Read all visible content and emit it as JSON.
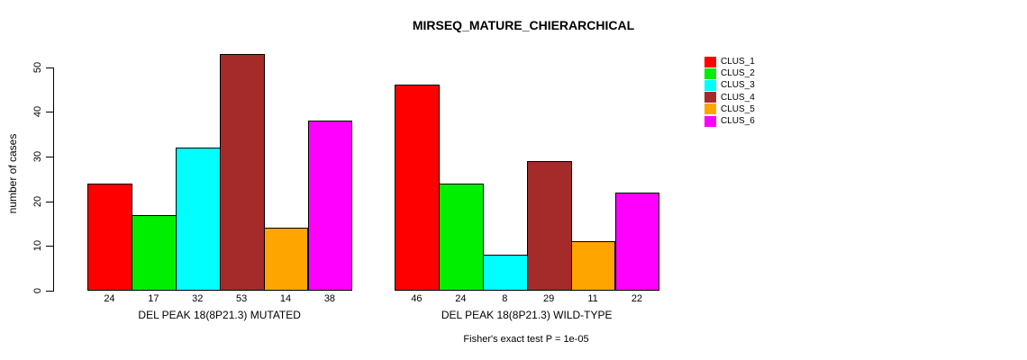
{
  "chart_data": {
    "type": "bar",
    "title": "MIRSEQ_MATURE_CHIERARCHICAL",
    "ylabel": "number of cases",
    "xlabel": "",
    "ylim": [
      0,
      50
    ],
    "yticks": [
      0,
      10,
      20,
      30,
      40,
      50
    ],
    "grid": false,
    "legend_position": "right",
    "background": "#FFFFFF",
    "axis_color": "#000000",
    "bar_border_color": "#000000",
    "categories": [
      "DEL PEAK 18(8P21.3) MUTATED",
      "DEL PEAK 18(8P21.3) WILD-TYPE"
    ],
    "series": [
      {
        "name": "CLUS_1",
        "color": "#FF0000",
        "values": [
          24,
          46
        ]
      },
      {
        "name": "CLUS_2",
        "color": "#00EE00",
        "values": [
          17,
          24
        ]
      },
      {
        "name": "CLUS_3",
        "color": "#00FFFF",
        "values": [
          32,
          8
        ]
      },
      {
        "name": "CLUS_4",
        "color": "#A52A2A",
        "values": [
          53,
          29
        ]
      },
      {
        "name": "CLUS_5",
        "color": "#FFA500",
        "values": [
          14,
          11
        ]
      },
      {
        "name": "CLUS_6",
        "color": "#FF00FF",
        "values": [
          38,
          22
        ]
      }
    ],
    "bar_value_labels_shown": true,
    "annotation": "Fisher's exact test P = 1e-05"
  }
}
